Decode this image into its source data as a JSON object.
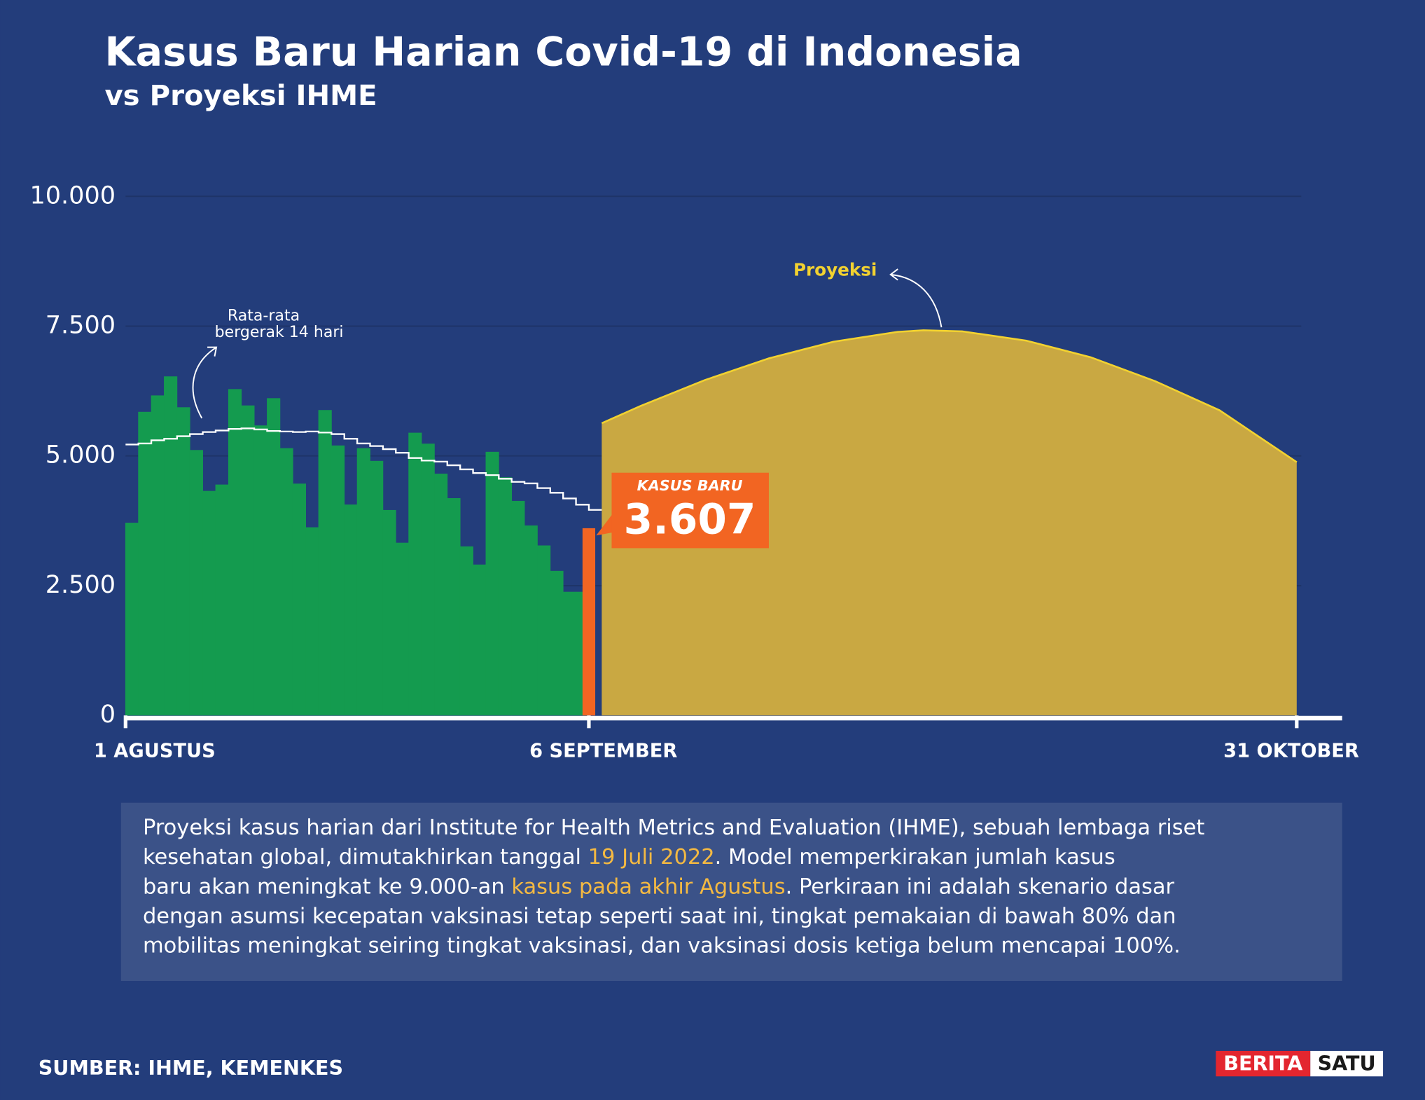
{
  "chart_data": {
    "type": "area",
    "title": "Kasus Baru Harian Covid-19 di Indonesia",
    "subtitle": "vs Proyeksi IHME",
    "xlim": [
      0,
      91
    ],
    "xticks": [
      {
        "value": 0,
        "label": "1 AGUSTUS"
      },
      {
        "value": 36,
        "label": "6 SEPTEMBER"
      },
      {
        "value": 91,
        "label": "31 OKTOBER"
      }
    ],
    "ylim": [
      0,
      10000
    ],
    "yticks": [
      0,
      {
        "value": 2500,
        "label": "2.500"
      },
      {
        "value": 5000,
        "label": "5.000"
      },
      {
        "value": 7500,
        "label": "7.500"
      },
      {
        "value": 10000,
        "label": "10.000"
      }
    ],
    "grid": true,
    "series": [
      {
        "color": "#149b4f",
        "x": [
          0,
          1,
          2,
          3,
          4,
          5,
          6,
          7,
          8,
          9,
          10,
          11,
          12,
          13,
          14,
          15,
          16,
          17,
          18,
          19,
          20,
          21,
          22,
          23,
          24,
          25,
          26,
          27,
          28,
          29,
          30,
          31,
          32,
          33,
          34,
          35
        ],
        "values": [
          3713,
          5849,
          6165,
          6532,
          5937,
          5114,
          4326,
          4448,
          6287,
          5972,
          5587,
          6112,
          5149,
          4466,
          3625,
          5884,
          5201,
          4063,
          5149,
          4904,
          3958,
          3327,
          5447,
          5236,
          4658,
          4186,
          3257,
          2907,
          5079,
          4588,
          4133,
          3660,
          3275,
          2785,
          2382,
          2382
        ]
      },
      {
        "name": [
          "Rata-rata",
          "bergerak 14 hari"
        ],
        "color": "#ffffff",
        "x": [
          0,
          1,
          2,
          3,
          4,
          5,
          6,
          7,
          8,
          9,
          10,
          11,
          12,
          13,
          14,
          15,
          16,
          17,
          18,
          19,
          20,
          21,
          22,
          23,
          24,
          25,
          26,
          27,
          28,
          29,
          30,
          31,
          32,
          33,
          34,
          35,
          36
        ],
        "values": [
          5220,
          5240,
          5300,
          5330,
          5380,
          5420,
          5460,
          5490,
          5520,
          5530,
          5510,
          5480,
          5470,
          5460,
          5470,
          5450,
          5420,
          5330,
          5240,
          5190,
          5130,
          5060,
          4960,
          4910,
          4890,
          4820,
          4740,
          4670,
          4630,
          4560,
          4500,
          4470,
          4380,
          4290,
          4180,
          4060,
          3960
        ]
      },
      {
        "name": "KASUS BARU",
        "color": "#f26522",
        "x": [
          36
        ],
        "values": [
          3607
        ],
        "value_labels": [
          "3.607"
        ]
      },
      {
        "name": "Proyeksi",
        "color": "#c9a842",
        "line_color": "#f2d230",
        "x": [
          37,
          40,
          45,
          50,
          55,
          60,
          62,
          65,
          70,
          75,
          80,
          85,
          91
        ],
        "values": [
          5630,
          5960,
          6460,
          6880,
          7200,
          7390,
          7420,
          7400,
          7220,
          6900,
          6440,
          5880,
          4880
        ]
      }
    ]
  },
  "note": {
    "lines": [
      [
        "Proyeksi kasus harian dari Institute for Health Metrics and Evaluation (IHME), sebuah lembaga riset"
      ],
      [
        "kesehatan  global, dimutakhirkan tanggal ",
        "19 Juli 2022",
        ". Model memperkirakan jumlah kasus"
      ],
      [
        "baru akan meningkat ke 9.000-an ",
        "kasus pada akhir Agustus",
        ". Perkiraan ini adalah skenario dasar"
      ],
      [
        "dengan asumsi kecepatan vaksinasi tetap seperti saat ini, tingkat pemakaian di bawah 80% dan"
      ],
      [
        "mobilitas meningkat seiring tingkat vaksinasi, dan vaksinasi dosis ketiga belum mencapai 100%."
      ]
    ]
  },
  "source": "SUMBER: IHME, KEMENKES",
  "logo": [
    "BERITA",
    "SATU"
  ]
}
